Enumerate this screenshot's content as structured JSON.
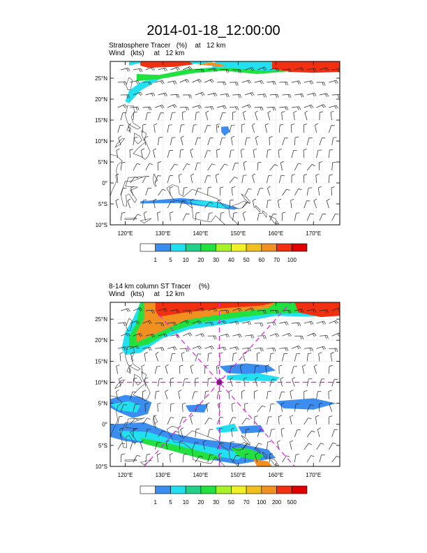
{
  "title": "2014-01-18_12:00:00",
  "panels": [
    {
      "subtitle1": "Stratosphere Tracer   (%)    at   12 km",
      "subtitle2": "Wind   (kts)     at   12 km",
      "lat_labels": [
        "25°N",
        "20°N",
        "15°N",
        "10°N",
        "5°N",
        "0°",
        "5°S",
        "10°S"
      ],
      "lon_labels": [
        "120°E",
        "130°E",
        "140°E",
        "150°E",
        "160°E",
        "170°E"
      ],
      "colorbar_labels": [
        "1",
        "5",
        "10",
        "20",
        "30",
        "40",
        "50",
        "60",
        "70",
        "100"
      ],
      "colorbar_colors": [
        "#ffffff",
        "#3b8ef0",
        "#22e0f0",
        "#22d08a",
        "#22e040",
        "#a8f028",
        "#f0f028",
        "#f0c020",
        "#f09020",
        "#f03010",
        "#e00000"
      ],
      "storm_center_marker": false
    },
    {
      "subtitle1": "8-14 km column ST Tracer    (%)",
      "subtitle2": "Wind   (kts)     at   12 km",
      "lat_labels": [
        "25°N",
        "20°N",
        "15°N",
        "10°N",
        "5°N",
        "0°",
        "5°S",
        "10°S"
      ],
      "lon_labels": [
        "120°E",
        "130°E",
        "140°E",
        "150°E",
        "160°E",
        "170°E"
      ],
      "colorbar_labels": [
        "1",
        "5",
        "10",
        "20",
        "30",
        "50",
        "70",
        "100",
        "200",
        "500"
      ],
      "colorbar_colors": [
        "#ffffff",
        "#3b8ef0",
        "#22e0f0",
        "#22d08a",
        "#22e040",
        "#a8f028",
        "#f0f028",
        "#f0c020",
        "#f09020",
        "#f03010",
        "#e00000"
      ],
      "storm_center_marker": true
    }
  ],
  "colors": {
    "red_tracer": "#f03010",
    "orange_tracer": "#f09020",
    "green_tracer": "#22e040",
    "cyan_tracer": "#22e0f0",
    "blue_tracer": "#3b8ef0",
    "storm_lines": "#e020e0"
  }
}
